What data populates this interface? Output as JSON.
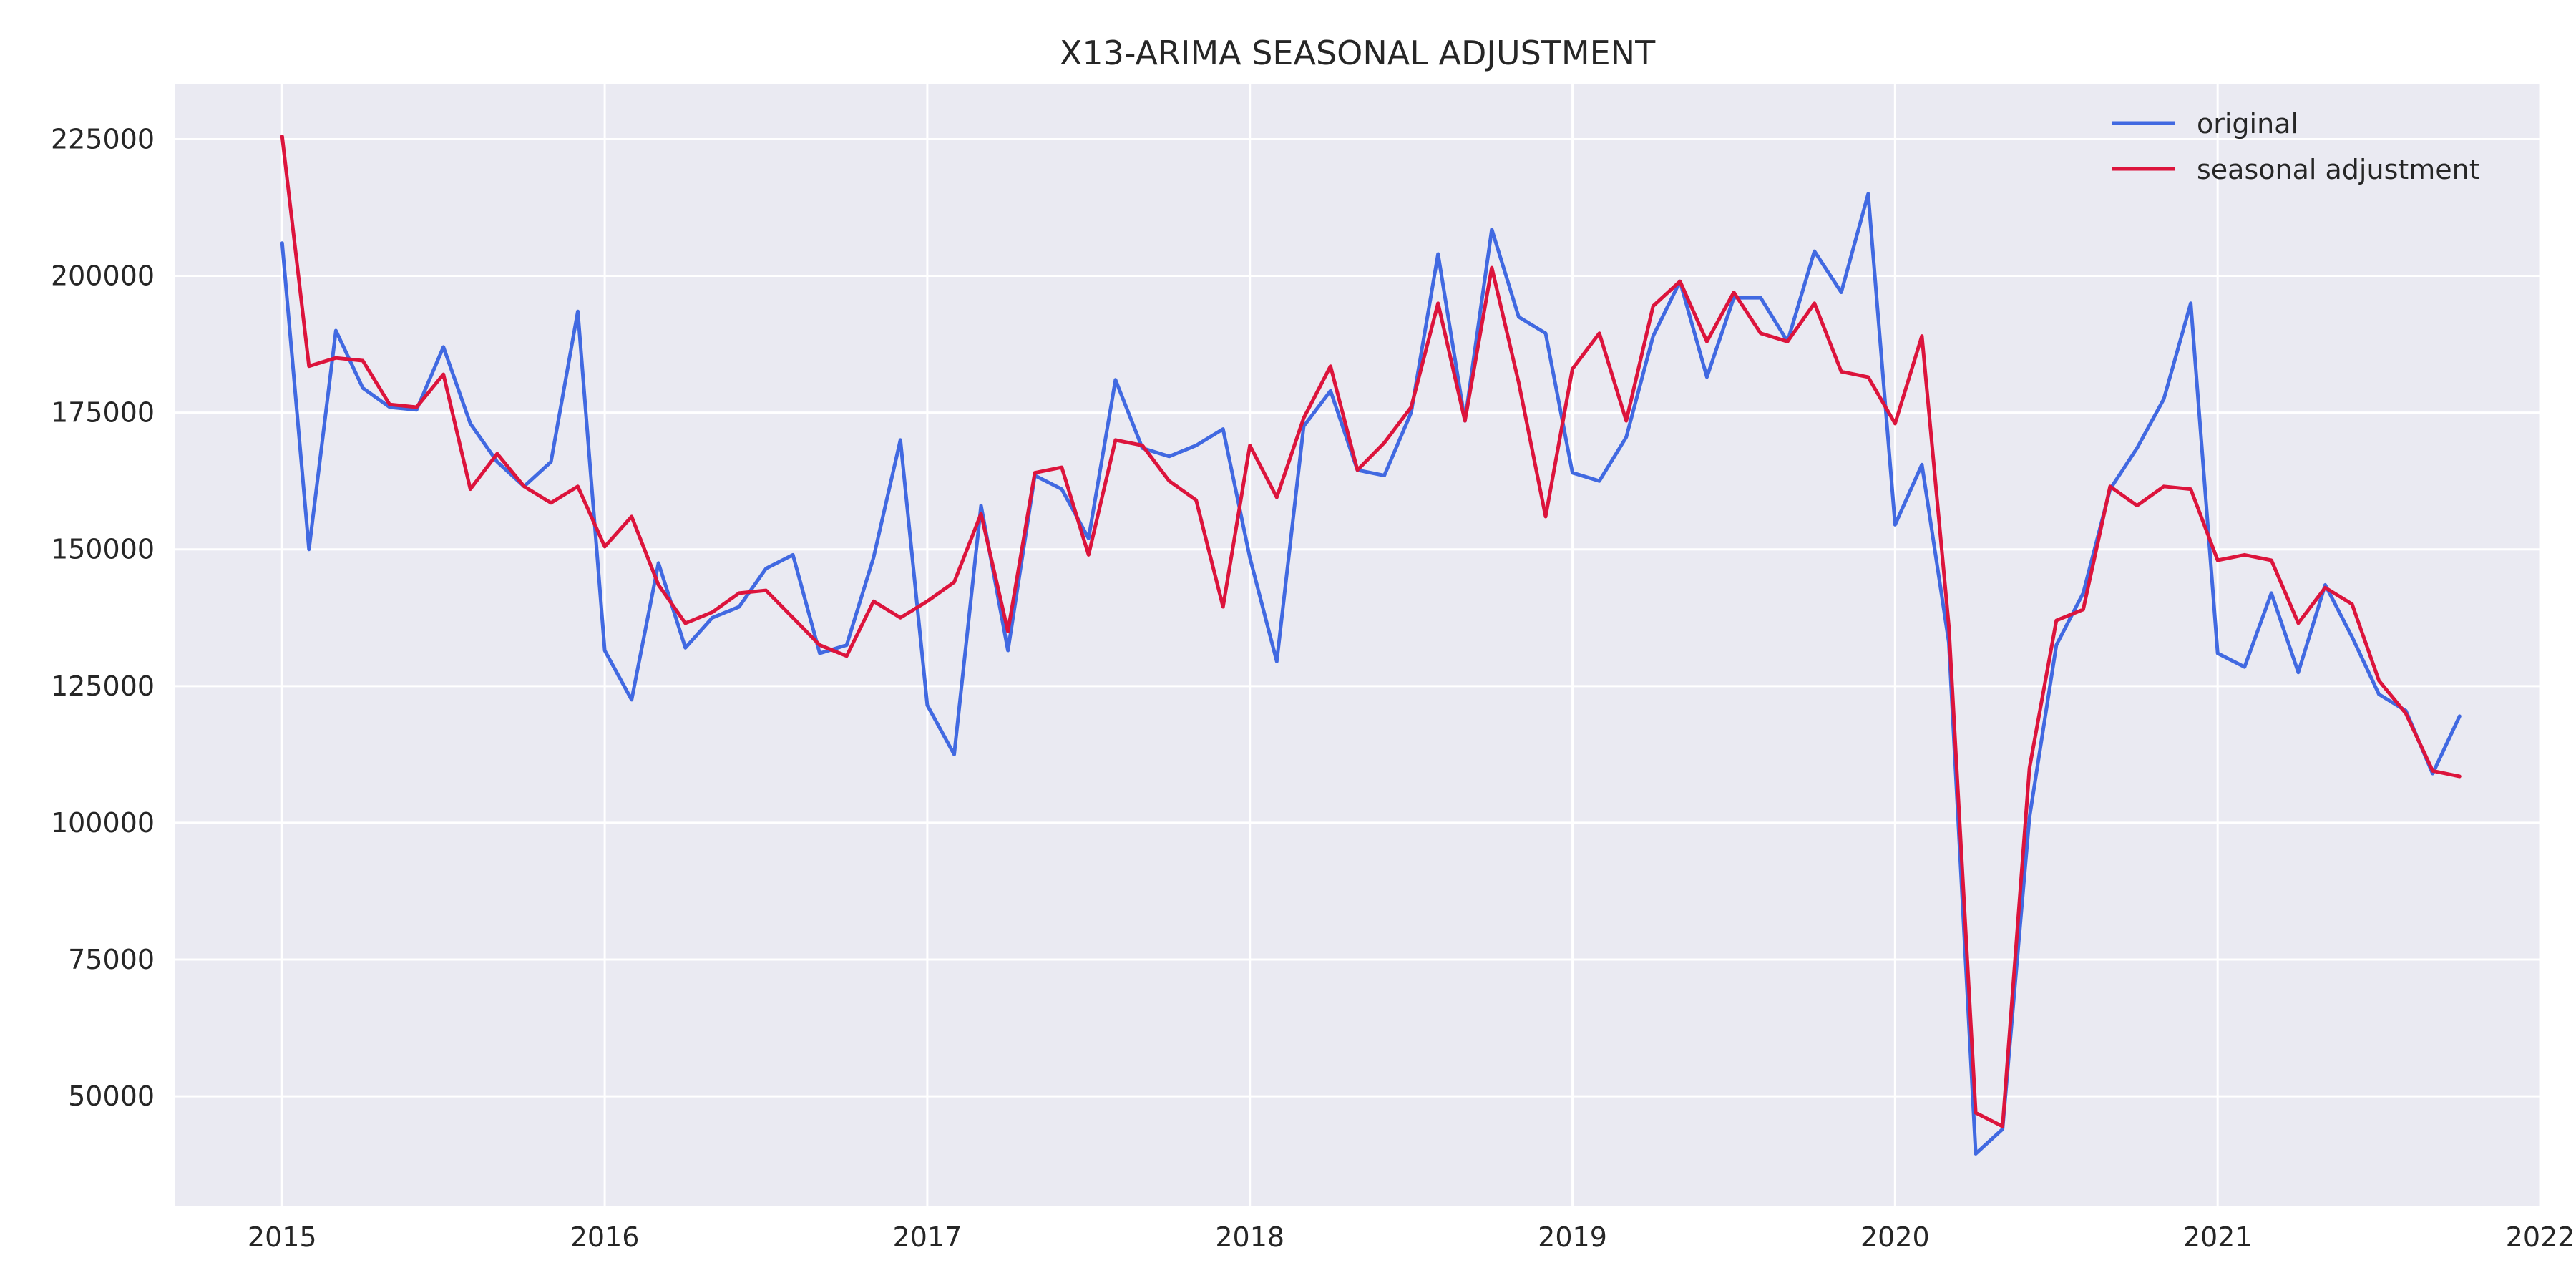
{
  "chart_data": {
    "type": "line",
    "title": "X13-ARIMA SEASONAL ADJUSTMENT",
    "xlabel": "",
    "ylabel": "",
    "x_ticks": [
      "2015",
      "2016",
      "2017",
      "2018",
      "2019",
      "2020",
      "2021",
      "2022"
    ],
    "y_ticks": [
      "50000",
      "75000",
      "100000",
      "125000",
      "150000",
      "175000",
      "200000",
      "225000"
    ],
    "xlim": [
      "2014-09",
      "2022-01"
    ],
    "ylim": [
      30000,
      235000
    ],
    "grid": true,
    "legend_position": "top-right",
    "colors": {
      "original": "#4169E1",
      "seasonal": "#DC143C",
      "plot_bg": "#EAEAF2",
      "grid": "#FFFFFF"
    },
    "x": [
      "2015-01",
      "2015-02",
      "2015-03",
      "2015-04",
      "2015-05",
      "2015-06",
      "2015-07",
      "2015-08",
      "2015-09",
      "2015-10",
      "2015-11",
      "2015-12",
      "2016-01",
      "2016-02",
      "2016-03",
      "2016-04",
      "2016-05",
      "2016-06",
      "2016-07",
      "2016-08",
      "2016-09",
      "2016-10",
      "2016-11",
      "2016-12",
      "2017-01",
      "2017-02",
      "2017-03",
      "2017-04",
      "2017-05",
      "2017-06",
      "2017-07",
      "2017-08",
      "2017-09",
      "2017-10",
      "2017-11",
      "2017-12",
      "2018-01",
      "2018-02",
      "2018-03",
      "2018-04",
      "2018-05",
      "2018-06",
      "2018-07",
      "2018-08",
      "2018-09",
      "2018-10",
      "2018-11",
      "2018-12",
      "2019-01",
      "2019-02",
      "2019-03",
      "2019-04",
      "2019-05",
      "2019-06",
      "2019-07",
      "2019-08",
      "2019-09",
      "2019-10",
      "2019-11",
      "2019-12",
      "2020-01",
      "2020-02",
      "2020-03",
      "2020-04",
      "2020-05",
      "2020-06",
      "2020-07",
      "2020-08",
      "2020-09",
      "2020-10",
      "2020-11",
      "2020-12",
      "2021-01",
      "2021-02",
      "2021-03",
      "2021-04",
      "2021-05",
      "2021-06",
      "2021-07",
      "2021-08",
      "2021-09",
      "2021-10"
    ],
    "series": [
      {
        "name": "original",
        "values": [
          206000,
          150000,
          190000,
          179500,
          176000,
          175500,
          187000,
          173000,
          166000,
          161500,
          166000,
          193500,
          131500,
          122500,
          147500,
          132000,
          137500,
          139500,
          146500,
          149000,
          131000,
          132500,
          148500,
          170000,
          121500,
          112500,
          158000,
          131500,
          163500,
          161000,
          152000,
          181000,
          168500,
          167000,
          169000,
          172000,
          148500,
          129500,
          172500,
          179000,
          164500,
          163500,
          175000,
          204000,
          173500,
          208500,
          192500,
          189500,
          164000,
          162500,
          170500,
          189000,
          199000,
          181500,
          196000,
          196000,
          188000,
          204500,
          197000,
          215000,
          154500,
          165500,
          133000,
          39500,
          44000,
          101000,
          132500,
          142000,
          161000,
          168500,
          177500,
          195000,
          131000,
          128500,
          142000,
          127500,
          143500,
          134000,
          123500,
          120500,
          109000,
          119500
        ]
      },
      {
        "name": "seasonal adjustment",
        "values": [
          225500,
          183500,
          185000,
          184500,
          176500,
          176000,
          182000,
          161000,
          167500,
          161500,
          158500,
          161500,
          150500,
          156000,
          143500,
          136500,
          138500,
          142000,
          142500,
          137500,
          132500,
          130500,
          140500,
          137500,
          140500,
          144000,
          156500,
          135000,
          164000,
          165000,
          149000,
          170000,
          169000,
          162500,
          159000,
          139500,
          169000,
          159500,
          174000,
          183500,
          164500,
          169500,
          176000,
          195000,
          173500,
          201500,
          180500,
          156000,
          183000,
          189500,
          173500,
          194500,
          199000,
          188000,
          197000,
          189500,
          188000,
          195000,
          182500,
          181500,
          173000,
          189000,
          136000,
          47000,
          44500,
          110000,
          137000,
          139000,
          161500,
          158000,
          161500,
          161000,
          148000,
          149000,
          148000,
          136500,
          143000,
          140000,
          126000,
          120000,
          109500,
          108500
        ]
      }
    ]
  }
}
